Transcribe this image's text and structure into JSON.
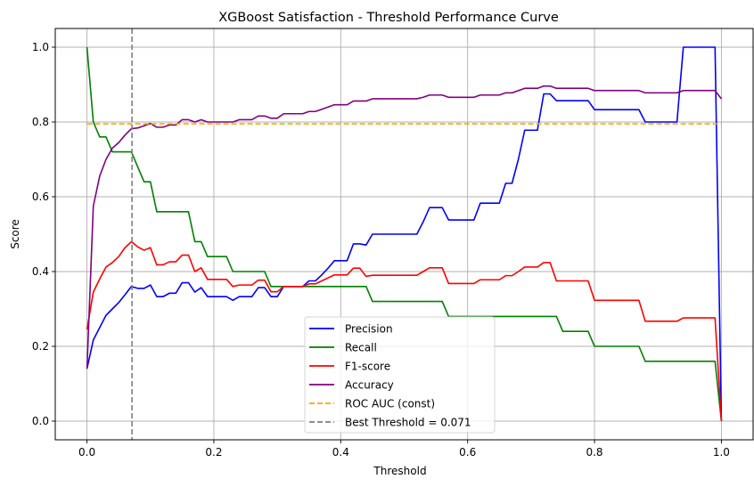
{
  "chart_data": {
    "type": "line",
    "title": "XGBoost Satisfaction - Threshold Performance Curve",
    "xlabel": "Threshold",
    "ylabel": "Score",
    "xlim": [
      -0.05,
      1.05
    ],
    "ylim": [
      -0.05,
      1.05
    ],
    "grid": true,
    "legend_position": "lower-center",
    "x_ticks": [
      0.0,
      0.2,
      0.4,
      0.6,
      0.8,
      1.0
    ],
    "x_tick_labels": [
      "0.0",
      "0.2",
      "0.4",
      "0.6",
      "0.8",
      "1.0"
    ],
    "y_ticks": [
      0.0,
      0.2,
      0.4,
      0.6,
      0.8,
      1.0
    ],
    "y_tick_labels": [
      "0.0",
      "0.2",
      "0.4",
      "0.6",
      "0.8",
      "1.0"
    ],
    "x": [
      0.0,
      0.01,
      0.02,
      0.03,
      0.04,
      0.05,
      0.06,
      0.07,
      0.08,
      0.09,
      0.1,
      0.11,
      0.12,
      0.13,
      0.14,
      0.15,
      0.16,
      0.17,
      0.18,
      0.19,
      0.2,
      0.21,
      0.22,
      0.23,
      0.24,
      0.25,
      0.26,
      0.27,
      0.28,
      0.29,
      0.3,
      0.31,
      0.32,
      0.33,
      0.34,
      0.35,
      0.36,
      0.37,
      0.38,
      0.39,
      0.4,
      0.41,
      0.42,
      0.43,
      0.44,
      0.45,
      0.46,
      0.47,
      0.48,
      0.49,
      0.5,
      0.51,
      0.52,
      0.53,
      0.54,
      0.55,
      0.56,
      0.57,
      0.58,
      0.59,
      0.6,
      0.61,
      0.62,
      0.63,
      0.64,
      0.65,
      0.66,
      0.67,
      0.68,
      0.69,
      0.7,
      0.71,
      0.72,
      0.73,
      0.74,
      0.75,
      0.76,
      0.77,
      0.78,
      0.79,
      0.8,
      0.81,
      0.82,
      0.83,
      0.84,
      0.85,
      0.86,
      0.87,
      0.88,
      0.89,
      0.9,
      0.91,
      0.92,
      0.93,
      0.94,
      0.95,
      0.96,
      0.97,
      0.98,
      0.99,
      1.0
    ],
    "series": [
      {
        "name": "Precision",
        "color": "#0000ff",
        "style": "solid",
        "values": [
          0.14,
          0.217,
          0.25,
          0.283,
          0.3,
          0.317,
          0.338,
          0.36,
          0.355,
          0.355,
          0.364,
          0.333,
          0.333,
          0.342,
          0.342,
          0.37,
          0.37,
          0.345,
          0.357,
          0.333,
          0.333,
          0.333,
          0.333,
          0.323,
          0.333,
          0.333,
          0.333,
          0.357,
          0.357,
          0.333,
          0.333,
          0.36,
          0.36,
          0.36,
          0.36,
          0.375,
          0.375,
          0.391,
          0.409,
          0.429,
          0.429,
          0.429,
          0.474,
          0.474,
          0.471,
          0.5,
          0.5,
          0.5,
          0.5,
          0.5,
          0.5,
          0.5,
          0.5,
          0.533,
          0.571,
          0.571,
          0.571,
          0.538,
          0.538,
          0.538,
          0.538,
          0.538,
          0.583,
          0.583,
          0.583,
          0.583,
          0.636,
          0.636,
          0.7,
          0.778,
          0.778,
          0.778,
          0.875,
          0.875,
          0.857,
          0.857,
          0.857,
          0.857,
          0.857,
          0.857,
          0.833,
          0.833,
          0.833,
          0.833,
          0.833,
          0.833,
          0.833,
          0.833,
          0.8,
          0.8,
          0.8,
          0.8,
          0.8,
          0.8,
          1.0,
          1.0,
          1.0,
          1.0,
          1.0,
          1.0,
          0.0
        ]
      },
      {
        "name": "Recall",
        "color": "#008000",
        "style": "solid",
        "values": [
          1.0,
          0.8,
          0.76,
          0.76,
          0.72,
          0.72,
          0.72,
          0.72,
          0.68,
          0.64,
          0.64,
          0.56,
          0.56,
          0.56,
          0.56,
          0.56,
          0.56,
          0.48,
          0.48,
          0.44,
          0.44,
          0.44,
          0.44,
          0.4,
          0.4,
          0.4,
          0.4,
          0.4,
          0.4,
          0.36,
          0.36,
          0.36,
          0.36,
          0.36,
          0.36,
          0.36,
          0.36,
          0.36,
          0.36,
          0.36,
          0.36,
          0.36,
          0.36,
          0.36,
          0.36,
          0.32,
          0.32,
          0.32,
          0.32,
          0.32,
          0.32,
          0.32,
          0.32,
          0.32,
          0.32,
          0.32,
          0.32,
          0.28,
          0.28,
          0.28,
          0.28,
          0.28,
          0.28,
          0.28,
          0.28,
          0.28,
          0.28,
          0.28,
          0.28,
          0.28,
          0.28,
          0.28,
          0.28,
          0.28,
          0.28,
          0.24,
          0.24,
          0.24,
          0.24,
          0.24,
          0.2,
          0.2,
          0.2,
          0.2,
          0.2,
          0.2,
          0.2,
          0.2,
          0.16,
          0.16,
          0.16,
          0.16,
          0.16,
          0.16,
          0.16,
          0.16,
          0.16,
          0.16,
          0.16,
          0.16,
          0.0
        ]
      },
      {
        "name": "F1-score",
        "color": "#ff0000",
        "style": "solid",
        "values": [
          0.245,
          0.345,
          0.38,
          0.412,
          0.424,
          0.44,
          0.464,
          0.48,
          0.466,
          0.457,
          0.464,
          0.418,
          0.418,
          0.426,
          0.426,
          0.444,
          0.444,
          0.4,
          0.41,
          0.379,
          0.379,
          0.379,
          0.379,
          0.36,
          0.364,
          0.364,
          0.364,
          0.377,
          0.377,
          0.346,
          0.346,
          0.36,
          0.36,
          0.36,
          0.36,
          0.367,
          0.367,
          0.375,
          0.383,
          0.391,
          0.391,
          0.391,
          0.409,
          0.409,
          0.387,
          0.39,
          0.39,
          0.39,
          0.39,
          0.39,
          0.39,
          0.39,
          0.39,
          0.4,
          0.41,
          0.41,
          0.41,
          0.368,
          0.368,
          0.368,
          0.368,
          0.368,
          0.378,
          0.378,
          0.378,
          0.378,
          0.389,
          0.389,
          0.4,
          0.412,
          0.412,
          0.412,
          0.424,
          0.424,
          0.375,
          0.375,
          0.375,
          0.375,
          0.375,
          0.375,
          0.323,
          0.323,
          0.323,
          0.323,
          0.323,
          0.323,
          0.323,
          0.323,
          0.267,
          0.267,
          0.267,
          0.267,
          0.267,
          0.267,
          0.276,
          0.276,
          0.276,
          0.276,
          0.276,
          0.276,
          0.0
        ]
      },
      {
        "name": "Accuracy",
        "color": "#800080",
        "style": "solid",
        "values": [
          0.14,
          0.575,
          0.655,
          0.7,
          0.73,
          0.745,
          0.765,
          0.782,
          0.784,
          0.79,
          0.796,
          0.786,
          0.786,
          0.792,
          0.792,
          0.806,
          0.806,
          0.8,
          0.806,
          0.8,
          0.8,
          0.8,
          0.8,
          0.8,
          0.806,
          0.806,
          0.806,
          0.816,
          0.816,
          0.81,
          0.81,
          0.822,
          0.822,
          0.822,
          0.822,
          0.828,
          0.828,
          0.834,
          0.84,
          0.846,
          0.846,
          0.846,
          0.856,
          0.856,
          0.856,
          0.862,
          0.862,
          0.862,
          0.862,
          0.862,
          0.862,
          0.862,
          0.862,
          0.866,
          0.872,
          0.872,
          0.872,
          0.866,
          0.866,
          0.866,
          0.866,
          0.866,
          0.872,
          0.872,
          0.872,
          0.872,
          0.878,
          0.878,
          0.884,
          0.89,
          0.89,
          0.89,
          0.896,
          0.896,
          0.89,
          0.89,
          0.89,
          0.89,
          0.89,
          0.89,
          0.884,
          0.884,
          0.884,
          0.884,
          0.884,
          0.884,
          0.884,
          0.884,
          0.878,
          0.878,
          0.878,
          0.878,
          0.878,
          0.878,
          0.884,
          0.884,
          0.884,
          0.884,
          0.884,
          0.884,
          0.862
        ]
      },
      {
        "name": "ROC AUC (const)",
        "color": "#ffa500",
        "style": "dashed",
        "constant": 0.795
      },
      {
        "name": "Best Threshold = 0.071",
        "color": "#808080",
        "style": "dashed",
        "vertical_x": 0.071
      }
    ]
  }
}
